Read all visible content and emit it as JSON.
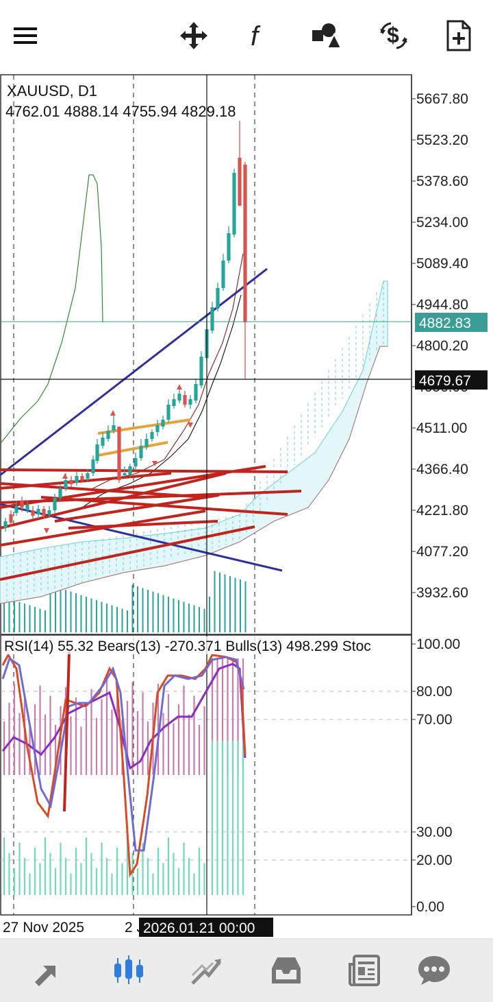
{
  "toolbar": {
    "icons": [
      "menu-icon",
      "crosshair-move-icon",
      "function-icon",
      "objects-icon",
      "currency-switch-icon",
      "add-document-icon"
    ]
  },
  "chart": {
    "symbol_label": "XAUUSD, D1",
    "ohlc_label": "4762.01 4888.14 4755.94 4829.18",
    "price_ticks": [
      "5667.80",
      "5523.20",
      "5378.60",
      "5234.00",
      "5089.40",
      "4944.80",
      "4800.20",
      "4656.00",
      "4511.00",
      "4366.40",
      "4221.80",
      "4077.20",
      "3932.60"
    ],
    "current_price": "4882.83",
    "crosshair_price": "4679.67",
    "indicator_label": "RSI(14) 55.32 Bears(13) -270.371 Bulls(13) 498.299 Stoc",
    "indicator_ticks": [
      "100.00",
      "80.00",
      "70.00",
      "30.00",
      "20.00",
      "0.00"
    ],
    "date_left": "27 Nov 2025",
    "date_mid": "2 J",
    "crosshair_date": "2026.01.21 00:00",
    "colors": {
      "bull": "#26a69a",
      "bear": "#d9534f",
      "trend_blue": "#2e2e9c",
      "trend_red": "#c0241d",
      "gold": "#e8a23a",
      "cloud": "#7fd6dc",
      "price_badge": "#3a9e96"
    }
  },
  "bottom_nav": {
    "icons": [
      "quotes-icon",
      "chart-icon",
      "trade-icon",
      "history-icon",
      "news-icon",
      "messages-icon"
    ],
    "active": "chart-icon"
  }
}
